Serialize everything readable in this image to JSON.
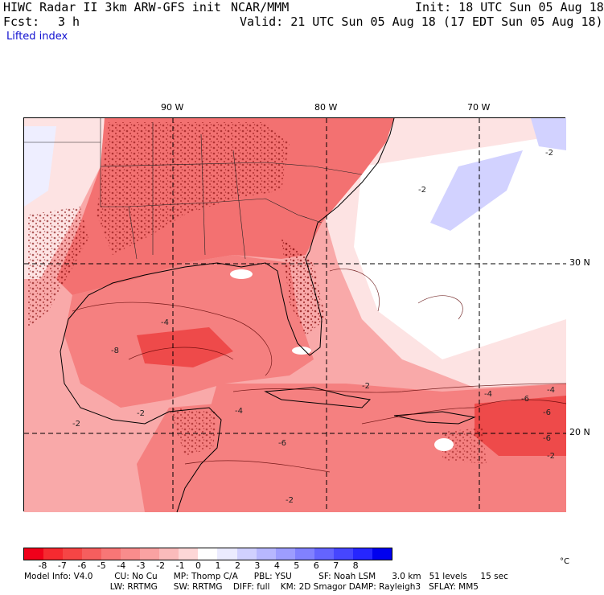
{
  "header": {
    "title_left": "HIWC Radar II 3km ARW-GFS init",
    "center": "NCAR/MMM",
    "init": "Init: 18 UTC Sun 05 Aug 18",
    "fcst_label": "Fcst:",
    "fcst_value": "3 h",
    "valid": "Valid: 21 UTC Sun 05 Aug 18 (17 EDT Sun 05 Aug 18)",
    "field": "Lifted index"
  },
  "map": {
    "lon_labels": [
      "90 W",
      "80 W",
      "70 W"
    ],
    "lat_labels": [
      "30 N",
      "20 N"
    ],
    "contour_labels": [
      "-2",
      "-2",
      "-2",
      "-4",
      "-4",
      "-6",
      "-6",
      "-6",
      "-8",
      "-2",
      "-4",
      "-6",
      "-2",
      "-2",
      "-4",
      "-2"
    ]
  },
  "colorbar": {
    "ticks": [
      "-8",
      "-7",
      "-6",
      "-5",
      "-4",
      "-3",
      "-2",
      "-1",
      "0",
      "1",
      "2",
      "3",
      "4",
      "5",
      "6",
      "7",
      "8"
    ],
    "unit": "°C",
    "colors": [
      "#f0001a",
      "#f52a30",
      "#f64545",
      "#f65e5e",
      "#f87676",
      "#f98c8c",
      "#faa2a2",
      "#fbbbbb",
      "#fdd7d7",
      "#ffffff",
      "#ebebff",
      "#d0d0ff",
      "#b7b7ff",
      "#9d9dff",
      "#8181ff",
      "#6464ff",
      "#4646ff",
      "#2626ff",
      "#0000ee"
    ]
  },
  "info": {
    "line1": "Model Info: V4.0        CU: No Cu      MP: Thomp C/A      PBL: YSU          SF: Noah LSM      3.0 km   51 levels     15 sec",
    "line2": "                                LW: RRTMG      SW: RRTMG    DIFF: full    KM: 2D Smagor DAMP: Rayleigh3   SFLAY: MM5"
  }
}
